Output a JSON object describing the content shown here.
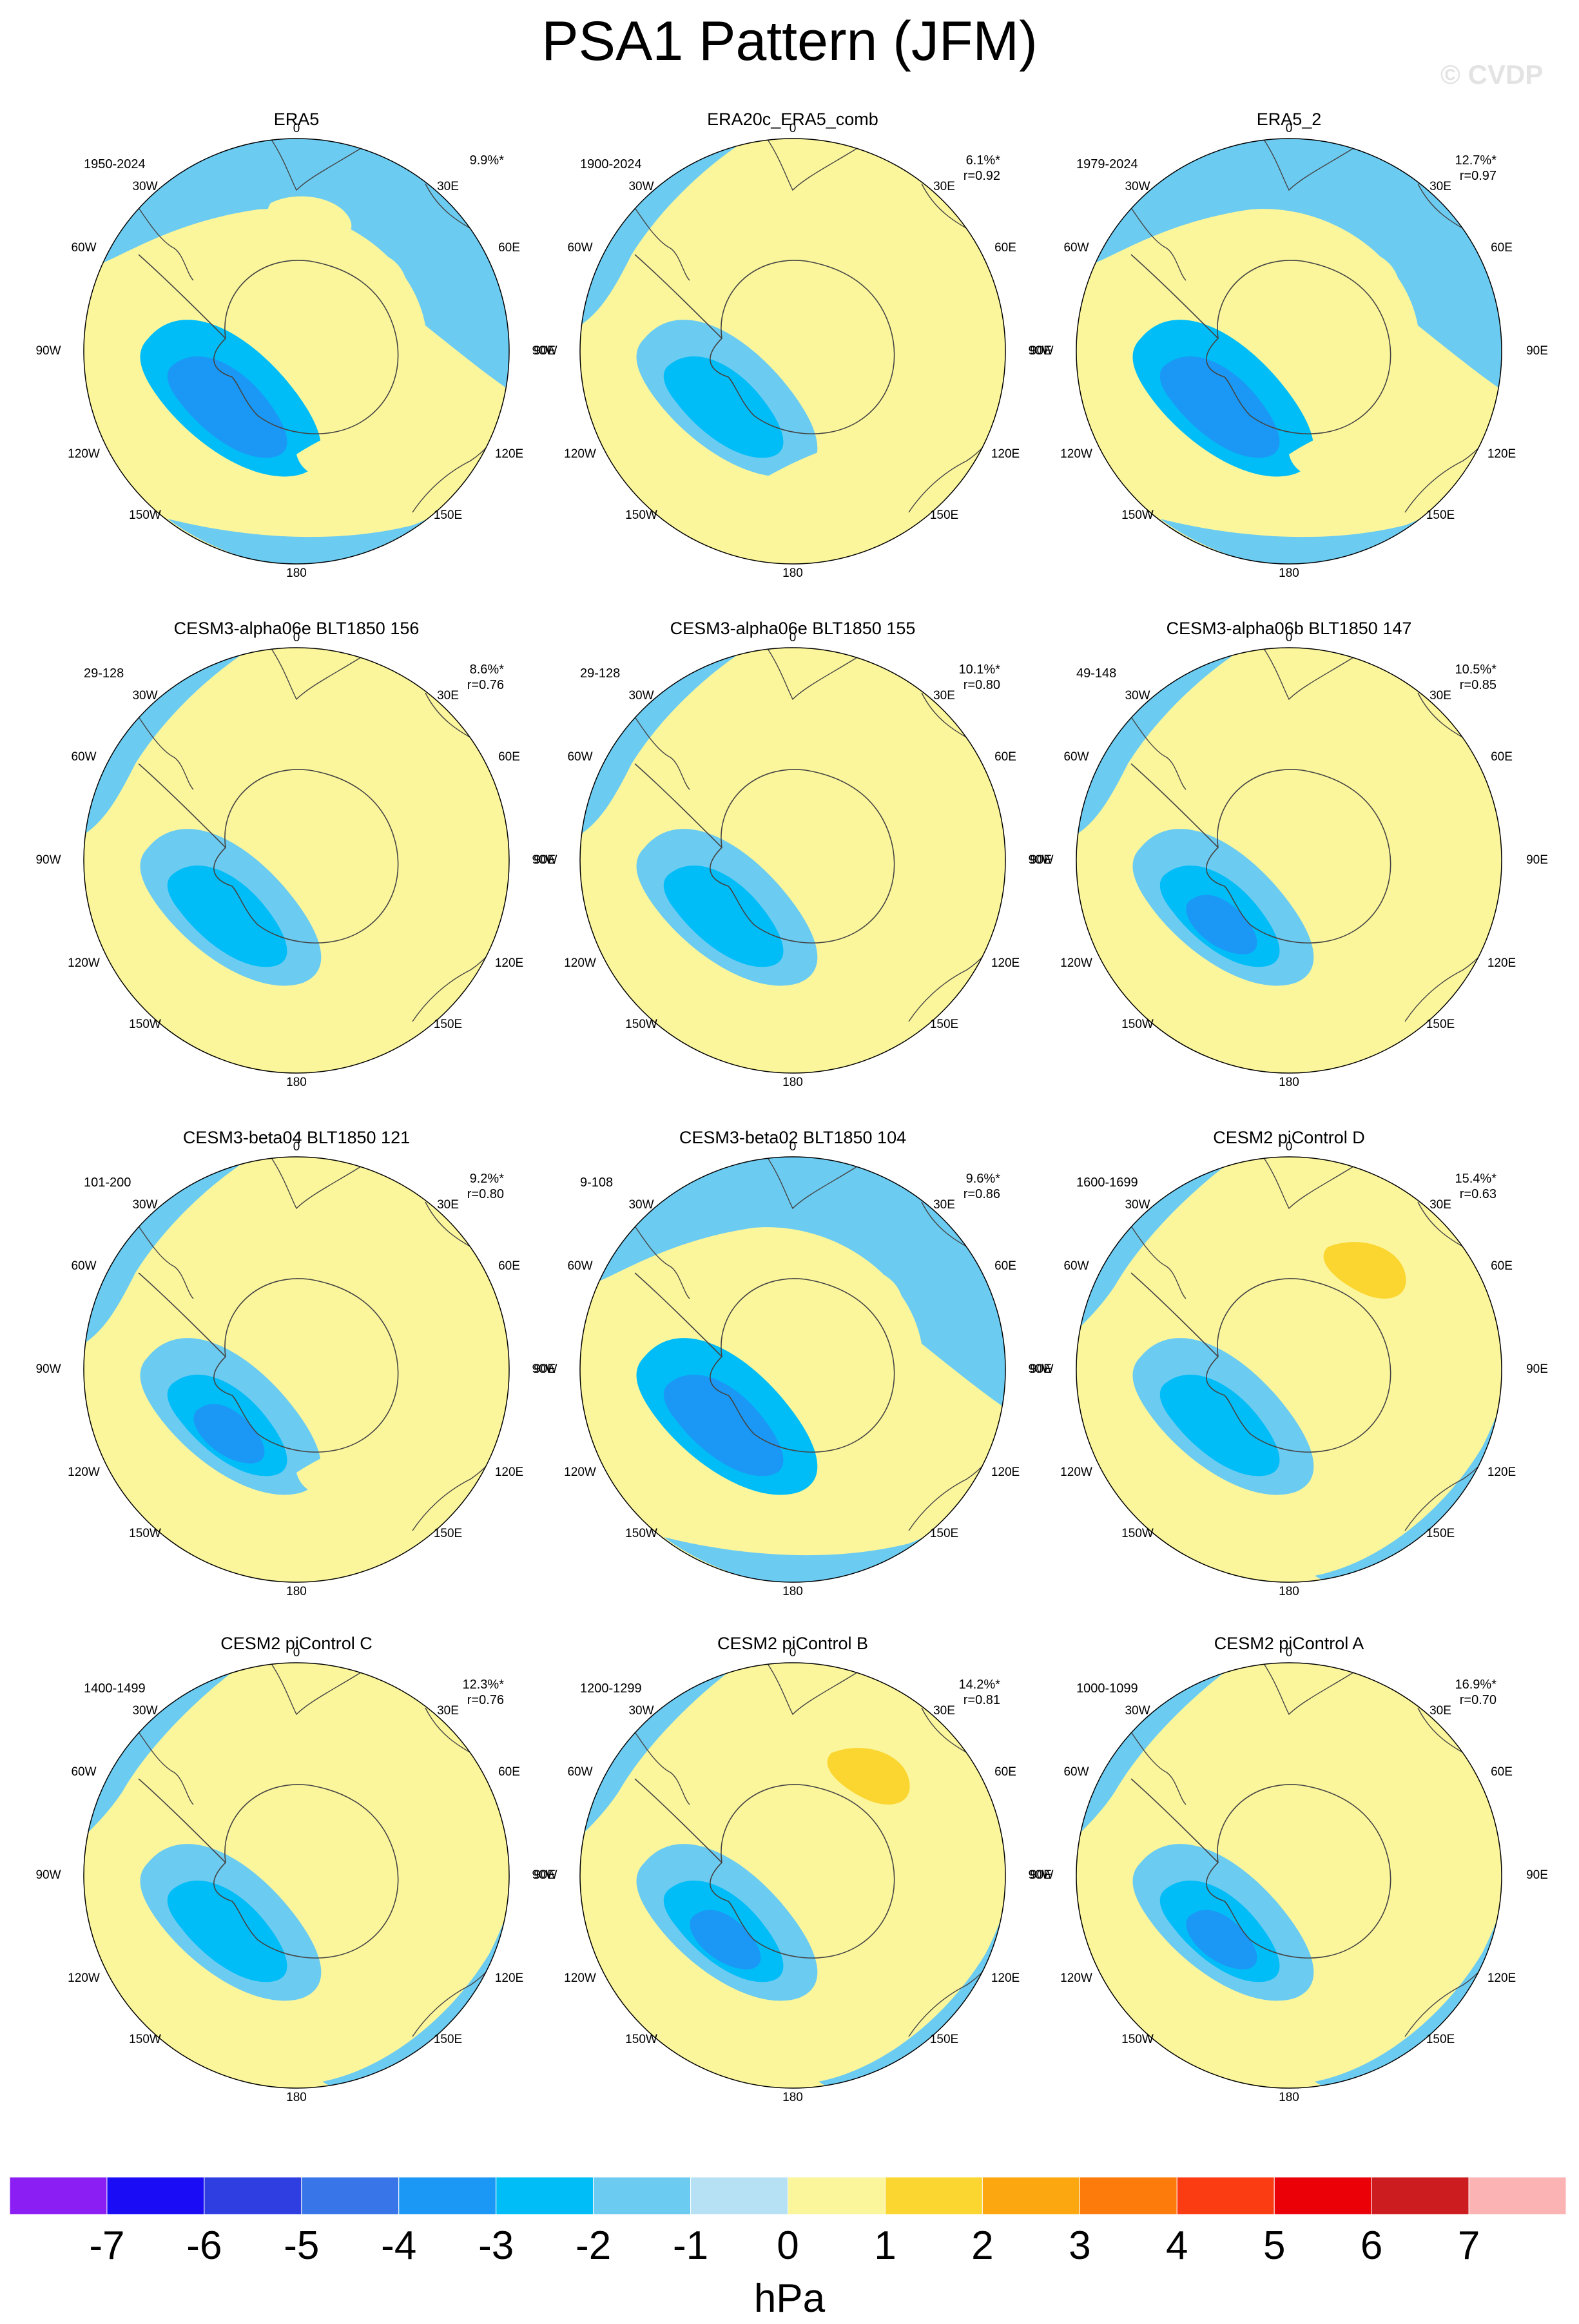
{
  "title": "PSA1 Pattern (JFM)",
  "watermark": "© CVDP",
  "lon_labels": [
    "0",
    "30E",
    "60E",
    "90E",
    "120E",
    "150E",
    "180",
    "150W",
    "120W",
    "90W",
    "60W",
    "30W"
  ],
  "colors": {
    "ocean_outline": "#000000",
    "coast": "#444444"
  },
  "panels": [
    {
      "title": "ERA5",
      "period": "1950-2024",
      "pct": "9.9%*",
      "r": "",
      "blobs": [
        {
          "lvl": -1,
          "shape": "big_neg"
        },
        {
          "lvl": -2,
          "shape": "low_a"
        },
        {
          "lvl": -3,
          "shape": "low_b"
        },
        {
          "lvl": 1,
          "shape": "small_a"
        },
        {
          "lvl": 1,
          "shape": "small_b"
        },
        {
          "lvl": 1,
          "shape": "small_c"
        }
      ]
    },
    {
      "title": "ERA20c_ERA5_comb",
      "period": "1900-2024",
      "pct": "6.1%*",
      "r": "r=0.92",
      "blobs": [
        {
          "lvl": -1,
          "shape": "edge_neg"
        },
        {
          "lvl": -1,
          "shape": "low_a"
        },
        {
          "lvl": -2,
          "shape": "low_b"
        },
        {
          "lvl": 1,
          "shape": "small_a"
        },
        {
          "lvl": 1,
          "shape": "band_se"
        },
        {
          "lvl": 1,
          "shape": "west_pos"
        }
      ]
    },
    {
      "title": "ERA5_2",
      "period": "1979-2024",
      "pct": "12.7%*",
      "r": "r=0.97",
      "blobs": [
        {
          "lvl": -1,
          "shape": "big_neg"
        },
        {
          "lvl": -2,
          "shape": "low_a"
        },
        {
          "lvl": -3,
          "shape": "low_b"
        },
        {
          "lvl": 1,
          "shape": "small_c"
        },
        {
          "lvl": 1,
          "shape": "small_b"
        }
      ]
    },
    {
      "title": "CESM3-alpha06e BLT1850 156",
      "period": "29-128",
      "pct": "8.6%*",
      "r": "r=0.76",
      "blobs": [
        {
          "lvl": -1,
          "shape": "edge_neg"
        },
        {
          "lvl": -1,
          "shape": "low_a"
        },
        {
          "lvl": -2,
          "shape": "low_b"
        },
        {
          "lvl": 1,
          "shape": "small_a"
        },
        {
          "lvl": 1,
          "shape": "small_b"
        },
        {
          "lvl": 1,
          "shape": "west_pos"
        }
      ]
    },
    {
      "title": "CESM3-alpha06e BLT1850 155",
      "period": "29-128",
      "pct": "10.1%*",
      "r": "r=0.80",
      "blobs": [
        {
          "lvl": -1,
          "shape": "edge_neg"
        },
        {
          "lvl": -1,
          "shape": "low_a"
        },
        {
          "lvl": -2,
          "shape": "low_b"
        },
        {
          "lvl": 1,
          "shape": "small_b"
        },
        {
          "lvl": 1,
          "shape": "west_pos"
        }
      ]
    },
    {
      "title": "CESM3-alpha06b BLT1850 147",
      "period": "49-148",
      "pct": "10.5%*",
      "r": "r=0.85",
      "blobs": [
        {
          "lvl": -1,
          "shape": "edge_neg"
        },
        {
          "lvl": -1,
          "shape": "low_a"
        },
        {
          "lvl": -2,
          "shape": "low_b"
        },
        {
          "lvl": -3,
          "shape": "low_c"
        },
        {
          "lvl": 1,
          "shape": "small_a"
        },
        {
          "lvl": 1,
          "shape": "west_pos"
        }
      ]
    },
    {
      "title": "CESM3-beta04 BLT1850 121",
      "period": "101-200",
      "pct": "9.2%*",
      "r": "r=0.80",
      "blobs": [
        {
          "lvl": -1,
          "shape": "edge_neg"
        },
        {
          "lvl": -1,
          "shape": "low_a"
        },
        {
          "lvl": -2,
          "shape": "low_b"
        },
        {
          "lvl": -3,
          "shape": "low_c"
        },
        {
          "lvl": 1,
          "shape": "small_b"
        },
        {
          "lvl": 1,
          "shape": "small_c"
        }
      ]
    },
    {
      "title": "CESM3-beta02 BLT1850 104",
      "period": "9-108",
      "pct": "9.6%*",
      "r": "r=0.86",
      "blobs": [
        {
          "lvl": -1,
          "shape": "big_neg"
        },
        {
          "lvl": -2,
          "shape": "low_a"
        },
        {
          "lvl": -3,
          "shape": "low_b"
        },
        {
          "lvl": 1,
          "shape": "small_b"
        }
      ]
    },
    {
      "title": "CESM2 piControl D",
      "period": "1600-1699",
      "pct": "15.4%*",
      "r": "r=0.63",
      "blobs": [
        {
          "lvl": -1,
          "shape": "se_neg"
        },
        {
          "lvl": -2,
          "shape": "se_neg2"
        },
        {
          "lvl": -1,
          "shape": "low_a"
        },
        {
          "lvl": -2,
          "shape": "low_b"
        },
        {
          "lvl": 1,
          "shape": "north_pos"
        },
        {
          "lvl": 2,
          "shape": "north_pos2"
        },
        {
          "lvl": 1,
          "shape": "west_pos"
        }
      ]
    },
    {
      "title": "CESM2 piControl C",
      "period": "1400-1499",
      "pct": "12.3%*",
      "r": "r=0.76",
      "blobs": [
        {
          "lvl": -1,
          "shape": "se_neg"
        },
        {
          "lvl": -2,
          "shape": "se_neg2"
        },
        {
          "lvl": -1,
          "shape": "low_a"
        },
        {
          "lvl": -2,
          "shape": "low_b"
        },
        {
          "lvl": 1,
          "shape": "north_pos"
        },
        {
          "lvl": 1,
          "shape": "west_pos"
        }
      ]
    },
    {
      "title": "CESM2 piControl B",
      "period": "1200-1299",
      "pct": "14.2%*",
      "r": "r=0.81",
      "blobs": [
        {
          "lvl": -1,
          "shape": "se_neg"
        },
        {
          "lvl": -2,
          "shape": "se_neg2"
        },
        {
          "lvl": -1,
          "shape": "low_a"
        },
        {
          "lvl": -2,
          "shape": "low_b"
        },
        {
          "lvl": -3,
          "shape": "low_c"
        },
        {
          "lvl": 1,
          "shape": "north_pos"
        },
        {
          "lvl": 2,
          "shape": "north_pos2"
        },
        {
          "lvl": 1,
          "shape": "west_pos"
        }
      ]
    },
    {
      "title": "CESM2 piControl A",
      "period": "1000-1099",
      "pct": "16.9%*",
      "r": "r=0.70",
      "blobs": [
        {
          "lvl": -1,
          "shape": "se_neg"
        },
        {
          "lvl": -2,
          "shape": "se_neg2"
        },
        {
          "lvl": -1,
          "shape": "low_a"
        },
        {
          "lvl": -2,
          "shape": "low_b"
        },
        {
          "lvl": -3,
          "shape": "low_c"
        },
        {
          "lvl": 1,
          "shape": "north_pos"
        },
        {
          "lvl": 1,
          "shape": "west_pos"
        }
      ]
    }
  ],
  "colorbar": {
    "unit": "hPa",
    "tick_labels": [
      "-7",
      "-6",
      "-5",
      "-4",
      "-3",
      "-2",
      "-1",
      "0",
      "1",
      "2",
      "3",
      "4",
      "5",
      "6",
      "7"
    ],
    "colors": [
      "#8b1ef2",
      "#1a0cf5",
      "#2e3ee0",
      "#3775e8",
      "#1b98f5",
      "#00bdf7",
      "#6ccbf1",
      "#b6e0f4",
      "#fbf69c",
      "#fbd530",
      "#fca710",
      "#fc7b0b",
      "#fb3b12",
      "#ec0008",
      "#cd1c20",
      "#fbb3b3"
    ]
  }
}
